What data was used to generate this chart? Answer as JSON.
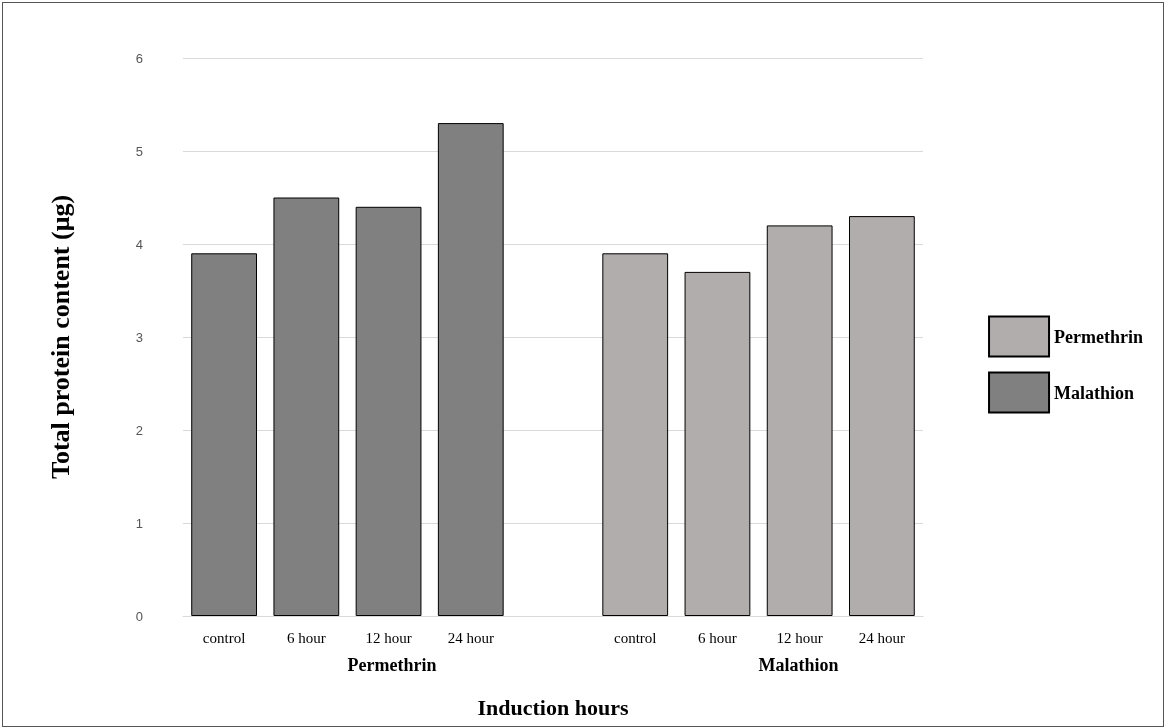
{
  "chart_data": {
    "type": "bar",
    "xlabel": "Induction hours",
    "ylabel": "Total protein content (μg)",
    "categories": [
      "control",
      "6 hour",
      "12 hour",
      "24 hour",
      null,
      "control",
      "6 hour",
      "12 hour",
      "24 hour"
    ],
    "series": [
      {
        "name": "Permethrin",
        "color": "#b0adac",
        "values": [
          null,
          null,
          null,
          null,
          null,
          3.9,
          3.7,
          4.2,
          4.3
        ]
      },
      {
        "name": "Malathion",
        "color": "#808080",
        "values": [
          3.9,
          4.5,
          4.4,
          5.3,
          null,
          null,
          null,
          null,
          null
        ]
      }
    ],
    "stacked": true,
    "annotations": [
      "Permethrin",
      "Malathion"
    ],
    "ylim": [
      0,
      6
    ],
    "yticks": [
      0,
      1,
      2,
      3,
      4,
      5,
      6
    ],
    "grid": "y",
    "legend": "right"
  }
}
